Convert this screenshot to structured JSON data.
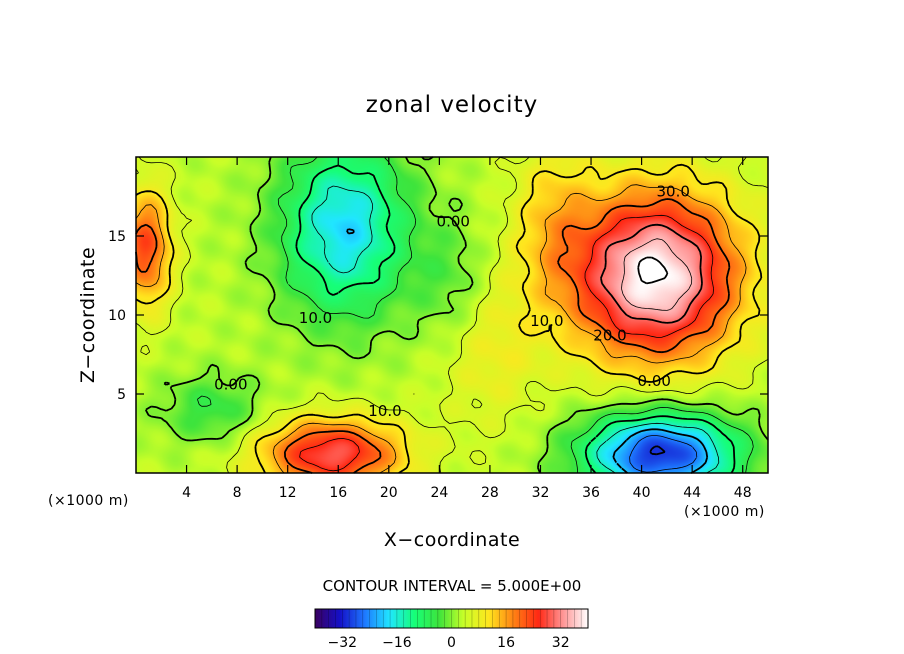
{
  "chart_data": {
    "type": "heatmap",
    "title": "zonal velocity",
    "xlabel": "X−coordinate",
    "ylabel": "Z−coordinate",
    "x_unit_label": "(×1000 m)",
    "y_unit_label": "(×1000 m)",
    "xlim": [
      0,
      50
    ],
    "ylim": [
      0,
      20
    ],
    "x_ticks": [
      4,
      8,
      12,
      16,
      20,
      24,
      28,
      32,
      36,
      40,
      44,
      48
    ],
    "y_ticks": [
      5,
      10,
      15
    ],
    "contour_interval_text": "CONTOUR INTERVAL = 5.000E+00",
    "contour_interval": 5,
    "contour_labels": [
      {
        "text": "30.0",
        "x": 42.5,
        "y": 17.5
      },
      {
        "text": "20.0",
        "x": 37.5,
        "y": 8.4
      },
      {
        "text": "10.0",
        "x": 32.5,
        "y": 9.3
      },
      {
        "text": "0.00",
        "x": 25.1,
        "y": 15.6
      },
      {
        "text": "0.00",
        "x": 41.0,
        "y": 5.5
      },
      {
        "text": "10.0",
        "x": 14.2,
        "y": 9.5
      },
      {
        "text": "0.00",
        "x": 7.5,
        "y": 5.3
      },
      {
        "text": "10.0",
        "x": 19.7,
        "y": 3.6
      }
    ],
    "colorbar": {
      "range": [
        -40,
        40
      ],
      "ticks": [
        -32,
        -16,
        0,
        16,
        32
      ],
      "colors": [
        "#3a0060",
        "#1410c8",
        "#1e78ff",
        "#20e6ff",
        "#16ff78",
        "#3ee43c",
        "#c8ff28",
        "#ffe61e",
        "#ff8214",
        "#ff2814",
        "#ff9696",
        "#ffffff"
      ]
    },
    "features": [
      {
        "kind": "max",
        "x": 41.0,
        "z": 12.5,
        "value": 40
      },
      {
        "kind": "min",
        "x": 41.5,
        "z": 1.5,
        "value": -33
      },
      {
        "kind": "min",
        "x": 16.0,
        "z": 15.0,
        "value": -19
      },
      {
        "kind": "max",
        "x": 15.5,
        "z": 1.2,
        "value": 28
      },
      {
        "kind": "max",
        "x": 0.5,
        "z": 14.0,
        "value": 23
      }
    ]
  }
}
